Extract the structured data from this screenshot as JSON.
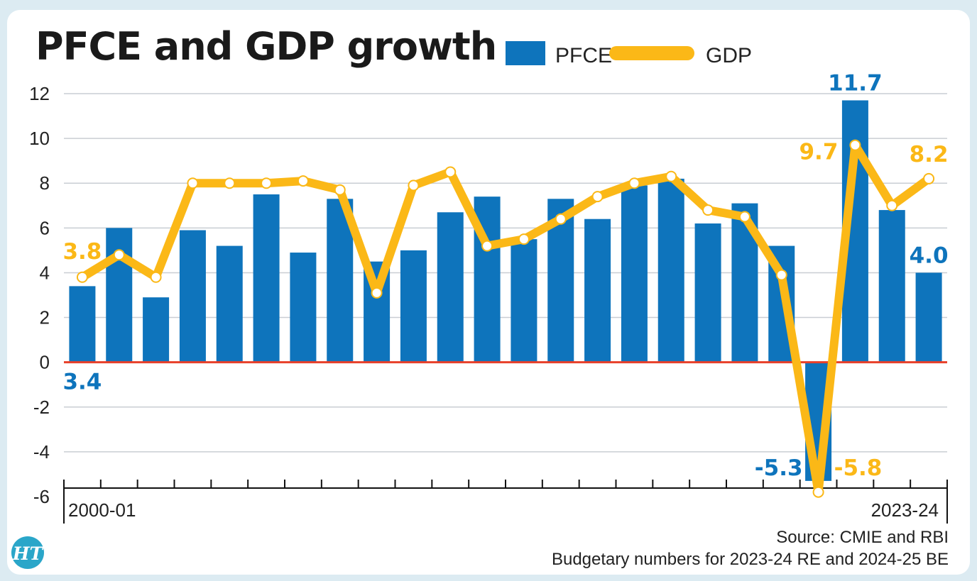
{
  "chart_data": {
    "type": "bar",
    "title": "PFCE and GDP growth",
    "categories_first": "2000-01",
    "categories_last": "2023-24",
    "ylim": [
      -6,
      12
    ],
    "yticks": [
      "12",
      "10",
      "8",
      "6",
      "4",
      "2",
      "0",
      "-2",
      "-4",
      "-6"
    ],
    "series": [
      {
        "name": "PFCE",
        "type": "bar",
        "color": "#0e74bc",
        "values": [
          3.4,
          6.0,
          2.9,
          5.9,
          5.2,
          7.5,
          4.9,
          7.3,
          4.5,
          5.0,
          6.7,
          7.4,
          5.5,
          7.3,
          6.4,
          7.9,
          8.2,
          6.2,
          7.1,
          5.2,
          -5.3,
          11.7,
          6.8,
          4.0
        ]
      },
      {
        "name": "GDP",
        "type": "line",
        "color": "#fbb817",
        "values": [
          3.8,
          4.8,
          3.8,
          8.0,
          8.0,
          8.0,
          8.1,
          7.7,
          3.1,
          7.9,
          8.5,
          5.2,
          5.5,
          6.4,
          7.4,
          8.0,
          8.3,
          6.8,
          6.5,
          3.9,
          -5.8,
          9.7,
          7.0,
          8.2
        ]
      }
    ],
    "data_labels": {
      "pfce_first": "3.4",
      "gdp_first": "3.8",
      "pfce_covid": "-5.3",
      "gdp_covid": "-5.8",
      "pfce_peak": "11.7",
      "gdp_peak": "9.7",
      "pfce_last": "4.0",
      "gdp_last": "8.2"
    },
    "zero_line_color": "#e8402a",
    "grid": true
  },
  "legend": {
    "pfce": "PFCE",
    "gdp": "GDP"
  },
  "source": {
    "line1": "Source: CMIE and RBI",
    "line2": "Budgetary numbers for 2023-24 RE and 2024-25 BE"
  },
  "logo": {
    "text": "HT",
    "color": "#2aa6c9"
  }
}
